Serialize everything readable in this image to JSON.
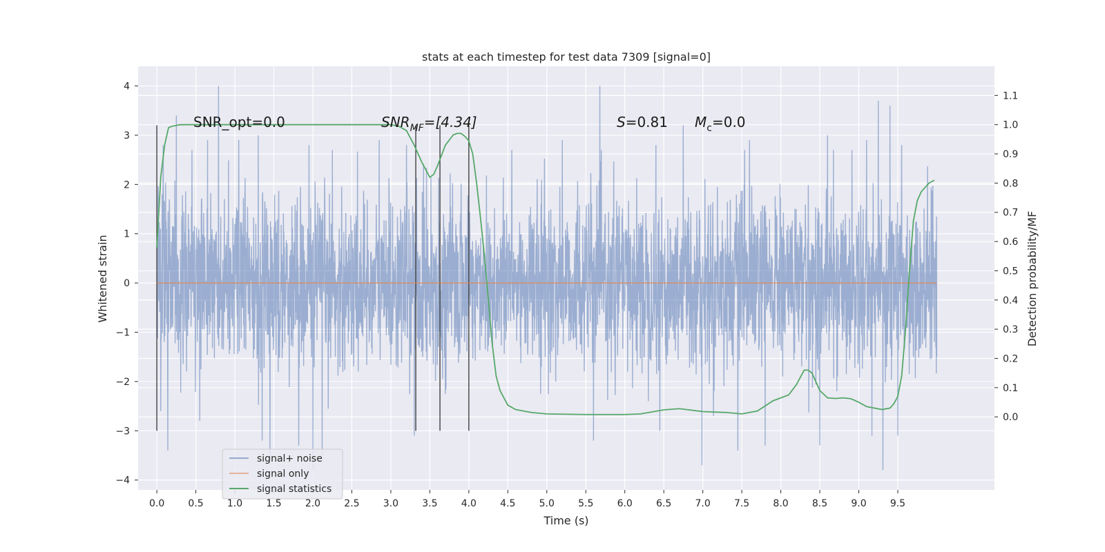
{
  "chart_data": {
    "type": "line",
    "title": "stats at each timestep for test data 7309 [signal=0]",
    "xlabel": "Time (s)",
    "ylabel": "Whitened strain",
    "y2label": "Detection probability/MF",
    "xlim": [
      -0.24,
      10.74
    ],
    "ylim": [
      -4.2,
      4.4
    ],
    "y2lim": [
      -0.25,
      1.2
    ],
    "x_ticks": [
      "0.0",
      "0.5",
      "1.0",
      "1.5",
      "2.0",
      "2.5",
      "3.0",
      "3.5",
      "4.0",
      "4.5",
      "5.0",
      "5.5",
      "6.0",
      "6.5",
      "7.0",
      "7.5",
      "8.0",
      "8.5",
      "9.0",
      "9.5"
    ],
    "y_ticks": [
      "4",
      "3",
      "2",
      "1",
      "0",
      "−1",
      "−2",
      "−3",
      "−4"
    ],
    "y2_ticks": [
      "1.1",
      "1.0",
      "0.9",
      "0.8",
      "0.7",
      "0.6",
      "0.5",
      "0.4",
      "0.3",
      "0.2",
      "0.1",
      "0.0"
    ],
    "grid": true,
    "legend_position": "lower-left",
    "annotations": {
      "snr_opt": "SNR_opt=0.0",
      "snr_mf_base": "SNR",
      "snr_mf_sub": "MF",
      "snr_mf_rest": "=[4.34]",
      "s_italic": "S",
      "s_rest": "=0.81",
      "mc_italic": "M",
      "mc_sub": "c",
      "mc_rest": "=0.0"
    },
    "vertical_markers_s": [
      0.0,
      3.32,
      3.63,
      4.0
    ],
    "series": [
      {
        "name": "signal+ noise",
        "color": "#4c72b0",
        "duration_s": 10.0,
        "peak_points": [
          [
            0.08,
            2.8
          ],
          [
            0.25,
            3.4
          ],
          [
            0.45,
            2.7
          ],
          [
            0.65,
            2.9
          ],
          [
            0.79,
            4.0
          ],
          [
            1.05,
            2.9
          ],
          [
            1.3,
            3.0
          ],
          [
            1.95,
            2.8
          ],
          [
            2.25,
            2.7
          ],
          [
            2.85,
            2.9
          ],
          [
            3.2,
            2.8
          ],
          [
            4.55,
            2.7
          ],
          [
            5.2,
            2.9
          ],
          [
            5.68,
            4.0
          ],
          [
            6.4,
            2.8
          ],
          [
            6.75,
            3.2
          ],
          [
            7.6,
            2.9
          ],
          [
            8.6,
            3.0
          ],
          [
            9.1,
            2.9
          ],
          [
            9.25,
            3.7
          ],
          [
            9.4,
            3.6
          ],
          [
            9.55,
            2.8
          ]
        ],
        "trough_points": [
          [
            0.05,
            -2.6
          ],
          [
            0.14,
            -3.4
          ],
          [
            0.55,
            -2.8
          ],
          [
            1.35,
            -3.2
          ],
          [
            1.45,
            -3.6
          ],
          [
            1.82,
            -3.3
          ],
          [
            2.0,
            -3.8
          ],
          [
            2.12,
            -3.5
          ],
          [
            3.3,
            -3.1
          ],
          [
            5.6,
            -3.2
          ],
          [
            6.45,
            -3.0
          ],
          [
            6.99,
            -3.7
          ],
          [
            7.45,
            -3.4
          ],
          [
            7.8,
            -3.3
          ],
          [
            8.5,
            -3.3
          ],
          [
            9.17,
            -3.1
          ],
          [
            9.31,
            -3.8
          ],
          [
            9.5,
            -3.1
          ]
        ]
      },
      {
        "name": "signal only",
        "color": "#dd8452",
        "x": [
          0.0,
          10.0
        ],
        "y": [
          0.0,
          0.0
        ]
      },
      {
        "name": "signal statistics",
        "color": "#55a868",
        "axis": "right",
        "x": [
          0.0,
          0.05,
          0.1,
          0.15,
          0.2,
          0.3,
          0.5,
          1.0,
          2.0,
          2.5,
          2.9,
          3.0,
          3.1,
          3.2,
          3.3,
          3.4,
          3.5,
          3.55,
          3.6,
          3.7,
          3.8,
          3.85,
          3.9,
          3.95,
          4.0,
          4.05,
          4.1,
          4.15,
          4.2,
          4.25,
          4.3,
          4.35,
          4.4,
          4.5,
          4.6,
          4.8,
          5.0,
          5.5,
          6.0,
          6.2,
          6.5,
          6.7,
          7.0,
          7.3,
          7.5,
          7.7,
          7.9,
          8.1,
          8.2,
          8.3,
          8.35,
          8.4,
          8.5,
          8.6,
          8.7,
          8.8,
          8.9,
          9.0,
          9.1,
          9.2,
          9.3,
          9.4,
          9.45,
          9.5,
          9.55,
          9.6,
          9.65,
          9.7,
          9.75,
          9.8,
          9.9,
          9.97
        ],
        "y": [
          0.58,
          0.82,
          0.93,
          0.99,
          0.995,
          1.0,
          1.0,
          1.0,
          1.0,
          1.0,
          1.0,
          1.0,
          0.995,
          0.98,
          0.93,
          0.87,
          0.82,
          0.83,
          0.86,
          0.93,
          0.965,
          0.97,
          0.97,
          0.96,
          0.945,
          0.9,
          0.8,
          0.68,
          0.55,
          0.4,
          0.25,
          0.14,
          0.09,
          0.04,
          0.025,
          0.015,
          0.01,
          0.008,
          0.008,
          0.01,
          0.024,
          0.028,
          0.018,
          0.015,
          0.01,
          0.02,
          0.055,
          0.075,
          0.11,
          0.16,
          0.16,
          0.15,
          0.09,
          0.065,
          0.063,
          0.065,
          0.062,
          0.05,
          0.035,
          0.03,
          0.025,
          0.03,
          0.045,
          0.07,
          0.14,
          0.3,
          0.5,
          0.67,
          0.74,
          0.77,
          0.8,
          0.81
        ]
      }
    ]
  }
}
